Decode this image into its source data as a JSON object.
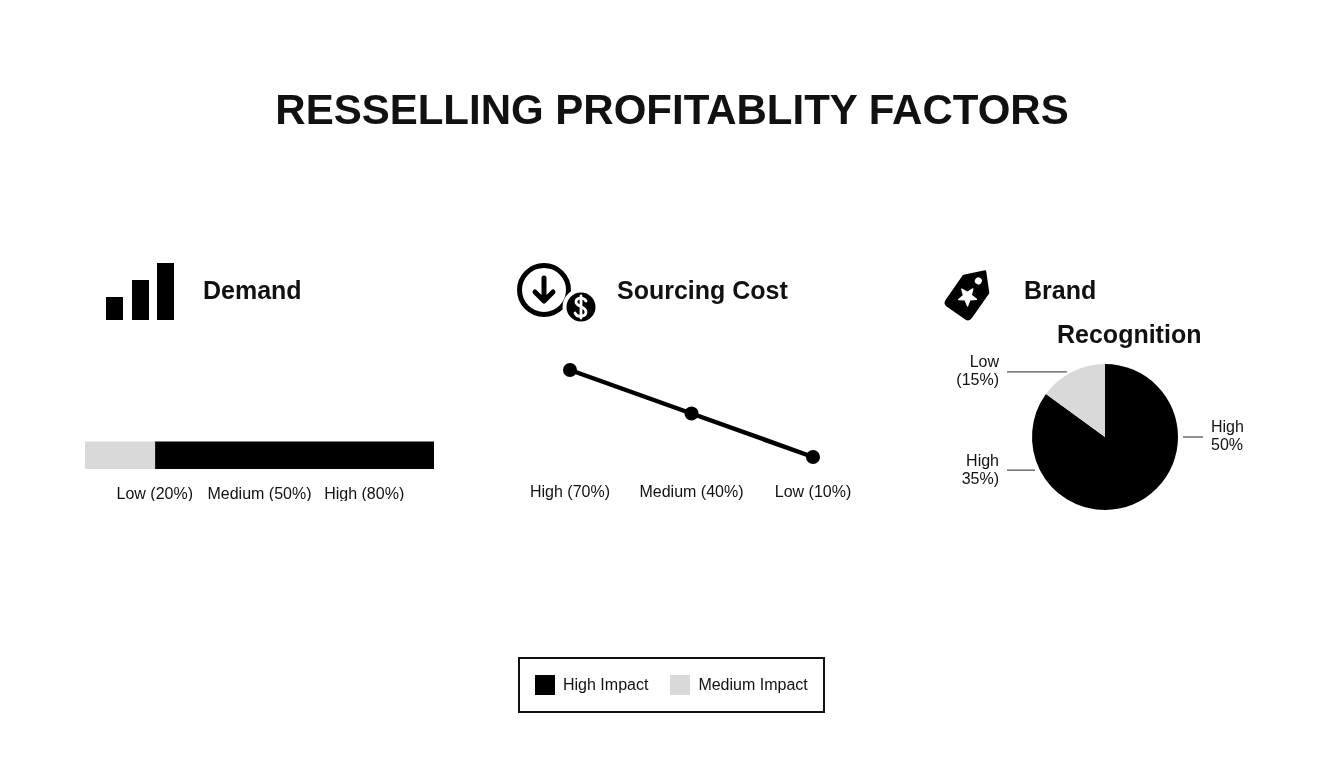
{
  "chart_data": [
    {
      "type": "bar",
      "title": "RESSELLING PROFITABLITY FACTORS",
      "subtitle": "Demand",
      "orientation": "horizontal",
      "stacked": true,
      "categories": [
        null
      ],
      "series": [
        {
          "name": "Medium Impact",
          "color": "#d9d9d9",
          "values": [
            20
          ]
        },
        {
          "name": "High Impact",
          "color": "#000000",
          "values": [
            80
          ]
        }
      ],
      "xlim": [
        0,
        100
      ],
      "xticks": [
        {
          "value": 20,
          "label": "Low (20%)"
        },
        {
          "value": 50,
          "label": "Medium (50%)"
        },
        {
          "value": 80,
          "label": "High (80%)"
        }
      ],
      "tick_labels": "x",
      "legend": "bottom"
    },
    {
      "type": "line",
      "title": "Sourcing Cost",
      "categories": [
        null,
        null,
        null
      ],
      "values": [
        70,
        40,
        10
      ],
      "value_labels": [
        "High (70%)",
        "Medium (40%)",
        "Low (10%)"
      ],
      "color": "#000000",
      "tick_labels": false,
      "marker": "circle"
    },
    {
      "type": "pie",
      "title": "Brand Recognition",
      "categories": [
        "High 50%",
        "High 35%)",
        "Low (15%)"
      ],
      "values": [
        50,
        35,
        15
      ],
      "colors": [
        "#000000",
        "#000000",
        "#d9d9d9"
      ]
    }
  ]
}
